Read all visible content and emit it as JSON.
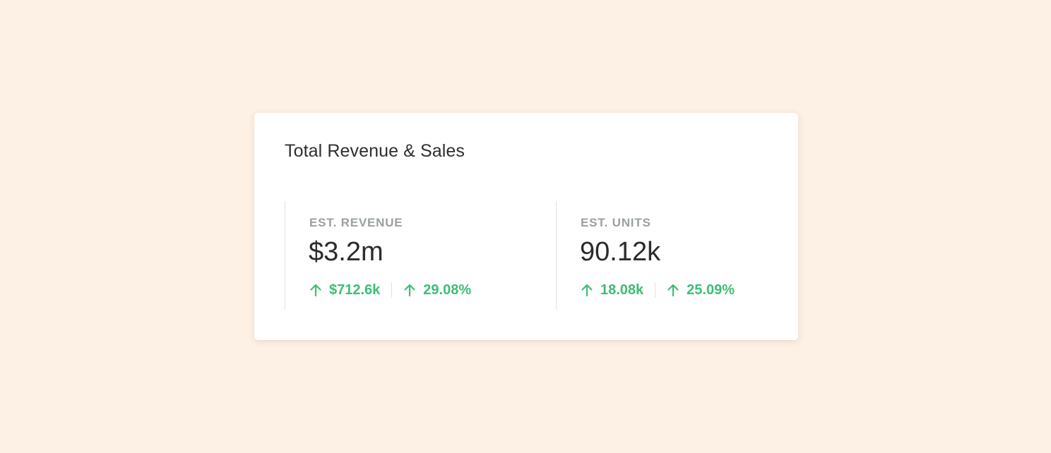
{
  "card": {
    "title": "Total Revenue & Sales"
  },
  "metrics": [
    {
      "label": "EST. REVENUE",
      "value": "$3.2m",
      "changes": [
        {
          "icon": "arrow-up-icon",
          "text": "$712.6k"
        },
        {
          "icon": "arrow-up-icon",
          "text": "29.08%"
        }
      ]
    },
    {
      "label": "EST. UNITS",
      "value": "90.12k",
      "changes": [
        {
          "icon": "arrow-up-icon",
          "text": "18.08k"
        },
        {
          "icon": "arrow-up-icon",
          "text": "25.09%"
        }
      ]
    }
  ],
  "colors": {
    "background": "#fdf0e4",
    "card": "#ffffff",
    "positive": "#3cbe76",
    "label": "#9aa1a0",
    "text": "#2b2b2b"
  }
}
